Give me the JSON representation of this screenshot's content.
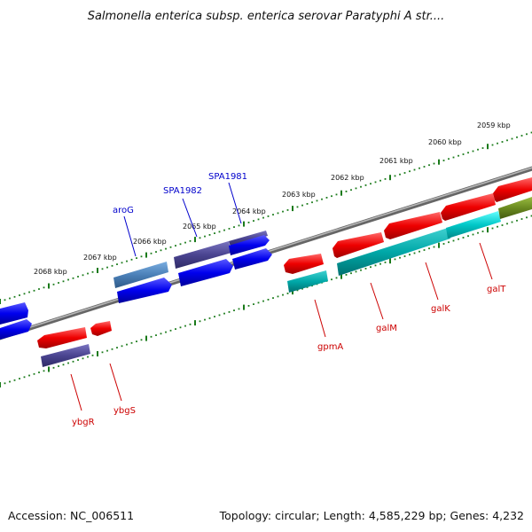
{
  "title": "Salmonella enterica subsp. enterica serovar Paratyphi A str....",
  "footer": {
    "accession": "Accession: NC_006511",
    "topology": "Topology: circular; Length: 4,585,229 bp; Genes: 4,232"
  },
  "ticks": [
    "2059 kbp",
    "2060 kbp",
    "2061 kbp",
    "2062 kbp",
    "2063 kbp",
    "2064 kbp",
    "2065 kbp",
    "2066 kbp",
    "2067 kbp",
    "2068 kbp"
  ],
  "gene_labels_top": [
    "aroG",
    "SPA1982",
    "SPA1981"
  ],
  "gene_labels_bottom": [
    "ybgR",
    "ybgS",
    "gpmA",
    "galM",
    "galK",
    "galT"
  ],
  "colors": {
    "forward_blue": "#0000ee",
    "forward_slate": "#4a4490",
    "forward_steel": "#4b80b8",
    "reverse_red": "#ee0000",
    "reverse_cyan": "#00c8c8",
    "reverse_olive": "#6a8a20",
    "scale_dots": "#1a7a1a",
    "backbone": "#888888"
  }
}
